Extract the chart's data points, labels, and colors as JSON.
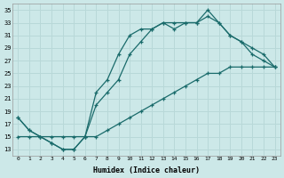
{
  "xlabel": "Humidex (Indice chaleur)",
  "bg_color": "#cce8e8",
  "grid_color": "#b8d8d8",
  "line_color": "#1a6b6b",
  "xlim": [
    -0.5,
    23.5
  ],
  "ylim": [
    12,
    36
  ],
  "xticks": [
    0,
    1,
    2,
    3,
    4,
    5,
    6,
    7,
    8,
    9,
    10,
    11,
    12,
    13,
    14,
    15,
    16,
    17,
    18,
    19,
    20,
    21,
    22,
    23
  ],
  "yticks": [
    13,
    15,
    17,
    19,
    21,
    23,
    25,
    27,
    29,
    31,
    33,
    35
  ],
  "hours": [
    0,
    1,
    2,
    3,
    4,
    5,
    6,
    7,
    8,
    9,
    10,
    11,
    12,
    13,
    14,
    15,
    16,
    17,
    18,
    19,
    20,
    21,
    22,
    23
  ],
  "line1": [
    18,
    16,
    15,
    14,
    13,
    13,
    15,
    22,
    24,
    28,
    31,
    32,
    32,
    33,
    32,
    33,
    33,
    35,
    33,
    31,
    30,
    28,
    27,
    26
  ],
  "line2": [
    18,
    16,
    15,
    14,
    13,
    13,
    15,
    20,
    22,
    24,
    28,
    30,
    32,
    33,
    33,
    33,
    33,
    34,
    33,
    31,
    30,
    29,
    28,
    26
  ],
  "line3": [
    15,
    15,
    15,
    15,
    15,
    15,
    15,
    15,
    16,
    17,
    18,
    19,
    20,
    21,
    22,
    23,
    24,
    25,
    25,
    26,
    26,
    26,
    26,
    26
  ]
}
